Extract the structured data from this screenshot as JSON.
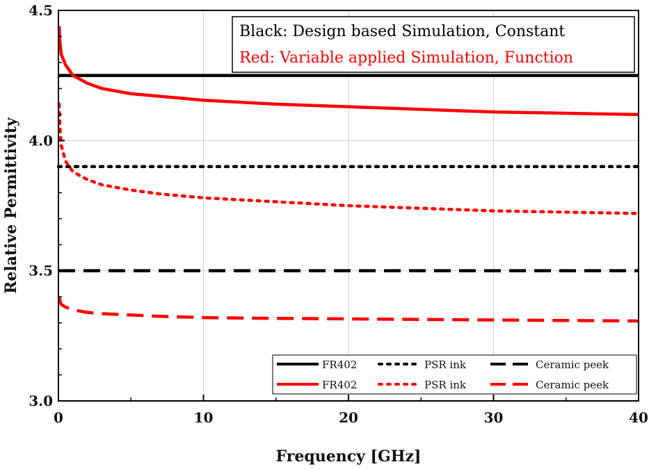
{
  "chart_data": {
    "type": "line",
    "title": "",
    "xlabel": "Frequency [GHz]",
    "ylabel": "Relative Permittivity",
    "xlim": [
      0,
      40
    ],
    "ylim": [
      3.0,
      4.5
    ],
    "xticks": [
      "0",
      "10",
      "20",
      "30",
      "40"
    ],
    "yticks": [
      "3.0",
      "3.5",
      "4.0",
      "4.5"
    ],
    "xtick_values": [
      0,
      10,
      20,
      30,
      40
    ],
    "ytick_values": [
      3.0,
      3.5,
      4.0,
      4.5
    ],
    "grid": true,
    "annotations": [
      {
        "text": "Black: Design based Simulation, Constant",
        "color": "#000000"
      },
      {
        "text": "Red: Variable applied Simulation, Function",
        "color": "#ff0000"
      }
    ],
    "legend_position": "bottom-right",
    "series": [
      {
        "name": "FR402",
        "color": "#000000",
        "style": "solid",
        "x": [
          0,
          40
        ],
        "y": [
          4.25,
          4.25
        ]
      },
      {
        "name": "PSR ink",
        "color": "#000000",
        "style": "dotted",
        "x": [
          0,
          40
        ],
        "y": [
          3.9,
          3.9
        ]
      },
      {
        "name": "Ceramic peek",
        "color": "#000000",
        "style": "dashed",
        "x": [
          0,
          40
        ],
        "y": [
          3.5,
          3.5
        ]
      },
      {
        "name": "FR402",
        "color": "#ff0000",
        "style": "solid",
        "x": [
          0.05,
          0.1,
          0.2,
          0.5,
          1,
          2,
          3,
          5,
          7,
          10,
          15,
          20,
          25,
          30,
          35,
          40
        ],
        "y": [
          4.44,
          4.38,
          4.33,
          4.29,
          4.25,
          4.22,
          4.2,
          4.18,
          4.17,
          4.155,
          4.14,
          4.13,
          4.12,
          4.11,
          4.105,
          4.1
        ]
      },
      {
        "name": "PSR ink",
        "color": "#ff0000",
        "style": "dotted",
        "x": [
          0.05,
          0.1,
          0.2,
          0.5,
          1,
          2,
          3,
          5,
          7,
          10,
          15,
          20,
          25,
          30,
          35,
          40
        ],
        "y": [
          4.14,
          4.05,
          3.98,
          3.92,
          3.88,
          3.85,
          3.83,
          3.81,
          3.795,
          3.78,
          3.765,
          3.75,
          3.74,
          3.73,
          3.725,
          3.72
        ]
      },
      {
        "name": "Ceramic peek",
        "color": "#ff0000",
        "style": "dashed",
        "x": [
          0.05,
          0.1,
          0.2,
          0.5,
          1,
          2,
          3,
          5,
          7,
          10,
          15,
          20,
          25,
          30,
          35,
          40
        ],
        "y": [
          3.4,
          3.385,
          3.37,
          3.36,
          3.35,
          3.34,
          3.335,
          3.33,
          3.325,
          3.32,
          3.317,
          3.315,
          3.313,
          3.311,
          3.309,
          3.307
        ]
      }
    ]
  }
}
